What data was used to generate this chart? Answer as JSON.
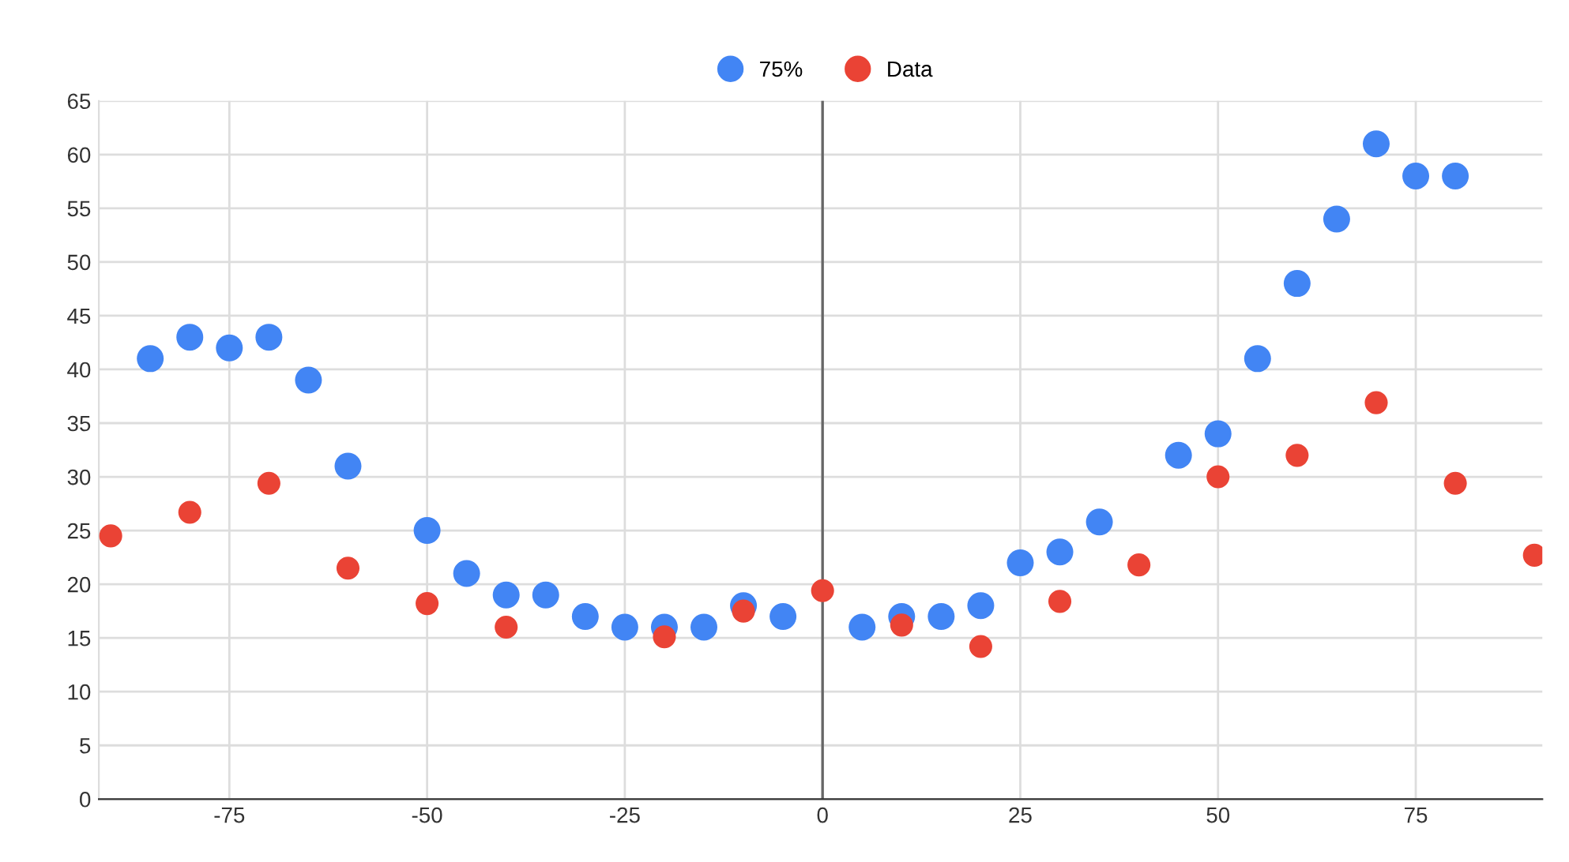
{
  "chart_data": {
    "type": "scatter",
    "legend": "top",
    "grid": true,
    "marker": "circle",
    "xlim": [
      -91.5,
      91
    ],
    "ylim": [
      0,
      65
    ],
    "xticks": [
      {
        "value": -75,
        "label": "-75"
      },
      {
        "value": -50,
        "label": "-50"
      },
      {
        "value": -25,
        "label": "-25"
      },
      0,
      25,
      50,
      75
    ],
    "yticks": [
      0,
      5,
      10,
      15,
      20,
      25,
      30,
      35,
      40,
      45,
      50,
      55,
      60,
      65
    ],
    "ref_lines": [
      {
        "axis": "x",
        "value": 0,
        "color": "#666666"
      }
    ],
    "series": [
      {
        "name": "75%",
        "color": "#4285f4",
        "x": [
          -85,
          -80,
          -75,
          -70,
          -65,
          -60,
          -50,
          -45,
          -40,
          -35,
          -30,
          -25,
          -20,
          -15,
          -10,
          -5,
          5,
          10,
          15,
          20,
          25,
          30,
          35,
          45,
          50,
          55,
          60,
          65,
          70,
          75,
          80
        ],
        "values": [
          41,
          43,
          42,
          43,
          39,
          31,
          25,
          21,
          19,
          19,
          17,
          16,
          16,
          16,
          18,
          17,
          16,
          17,
          17,
          18,
          22,
          23,
          25.8,
          32,
          34,
          41,
          48,
          54,
          61,
          58,
          58
        ]
      },
      {
        "name": "Data",
        "color": "#ea4335",
        "x": [
          -90,
          -80,
          -70,
          -60,
          -50,
          -40,
          -20,
          -10,
          0,
          10,
          20,
          30,
          40,
          50,
          60,
          70,
          80,
          90
        ],
        "values": [
          24.5,
          26.7,
          29.4,
          21.5,
          18.2,
          16,
          15.1,
          17.5,
          19.4,
          16.2,
          14.2,
          18.4,
          21.8,
          30,
          32,
          36.9,
          29.4,
          22.7
        ]
      }
    ]
  }
}
